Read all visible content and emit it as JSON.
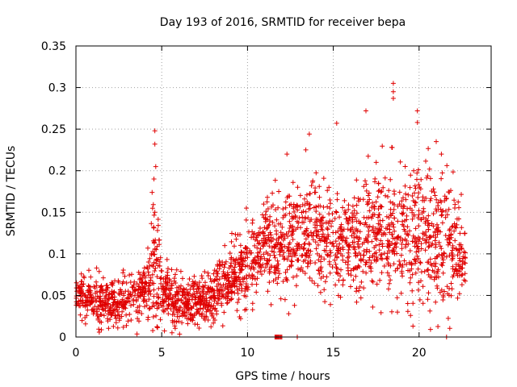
{
  "chart_data": {
    "type": "scatter",
    "title": "Day 193 of 2016, SRMTID for receiver bepa",
    "xlabel": "GPS time / hours",
    "ylabel": "SRMTID / TECUs",
    "xlim": [
      0,
      24.2
    ],
    "ylim": [
      0,
      0.35
    ],
    "grid": true,
    "marker": "+",
    "color": "#e00000",
    "x_ticks": [
      0,
      5,
      10,
      15,
      20
    ],
    "y_ticks": [
      0,
      0.05,
      0.1,
      0.15,
      0.2,
      0.25,
      0.3,
      0.35
    ],
    "x_tick_labels": [
      "0",
      "5",
      "10",
      "15",
      "20"
    ],
    "y_tick_labels": [
      "0",
      "0.05",
      "0.1",
      "0.15",
      "0.2",
      "0.25",
      "0.3",
      "0.35"
    ],
    "series": [
      {
        "name": "SRMTID",
        "profile": [
          [
            0.0,
            0.055,
            0.012
          ],
          [
            1.0,
            0.048,
            0.014
          ],
          [
            2.0,
            0.04,
            0.015
          ],
          [
            3.0,
            0.046,
            0.016
          ],
          [
            4.0,
            0.05,
            0.016
          ],
          [
            4.6,
            0.09,
            0.045
          ],
          [
            5.0,
            0.06,
            0.022
          ],
          [
            6.0,
            0.036,
            0.014
          ],
          [
            7.0,
            0.042,
            0.015
          ],
          [
            8.0,
            0.045,
            0.016
          ],
          [
            9.0,
            0.075,
            0.022
          ],
          [
            10.0,
            0.08,
            0.022
          ],
          [
            11.0,
            0.11,
            0.025
          ],
          [
            12.0,
            0.115,
            0.03
          ],
          [
            13.0,
            0.12,
            0.03
          ],
          [
            14.0,
            0.125,
            0.032
          ],
          [
            15.0,
            0.115,
            0.03
          ],
          [
            16.0,
            0.112,
            0.03
          ],
          [
            17.0,
            0.125,
            0.035
          ],
          [
            18.0,
            0.13,
            0.038
          ],
          [
            19.0,
            0.12,
            0.038
          ],
          [
            20.0,
            0.13,
            0.04
          ],
          [
            21.0,
            0.115,
            0.04
          ],
          [
            22.0,
            0.11,
            0.035
          ],
          [
            22.7,
            0.095,
            0.025
          ]
        ],
        "x_range": [
          0.0,
          22.7
        ],
        "n_points": 2300,
        "peaks": [
          {
            "x": 4.6,
            "y": 0.248
          },
          {
            "x": 4.6,
            "y": 0.232
          },
          {
            "x": 4.65,
            "y": 0.205
          },
          {
            "x": 4.55,
            "y": 0.19
          },
          {
            "x": 4.6,
            "y": 0.15
          },
          {
            "x": 16.9,
            "y": 0.272
          },
          {
            "x": 18.5,
            "y": 0.305
          },
          {
            "x": 18.5,
            "y": 0.295
          },
          {
            "x": 18.5,
            "y": 0.287
          },
          {
            "x": 19.9,
            "y": 0.272
          },
          {
            "x": 19.9,
            "y": 0.258
          },
          {
            "x": 15.2,
            "y": 0.257
          },
          {
            "x": 13.6,
            "y": 0.244
          },
          {
            "x": 21.0,
            "y": 0.235
          },
          {
            "x": 21.3,
            "y": 0.22
          },
          {
            "x": 13.4,
            "y": 0.225
          },
          {
            "x": 12.3,
            "y": 0.22
          },
          {
            "x": 17.5,
            "y": 0.21
          },
          {
            "x": 12.4,
            "y": 0.028
          },
          {
            "x": 9.6,
            "y": 0.022
          },
          {
            "x": 17.3,
            "y": 0.036
          },
          {
            "x": 19.5,
            "y": 0.026
          },
          {
            "x": 5.6,
            "y": 0.005
          }
        ],
        "zero_points": [
          11.6,
          11.65,
          11.7,
          11.75,
          11.8,
          11.85,
          11.9,
          11.95,
          12.0,
          12.9,
          21.6
        ]
      }
    ]
  }
}
